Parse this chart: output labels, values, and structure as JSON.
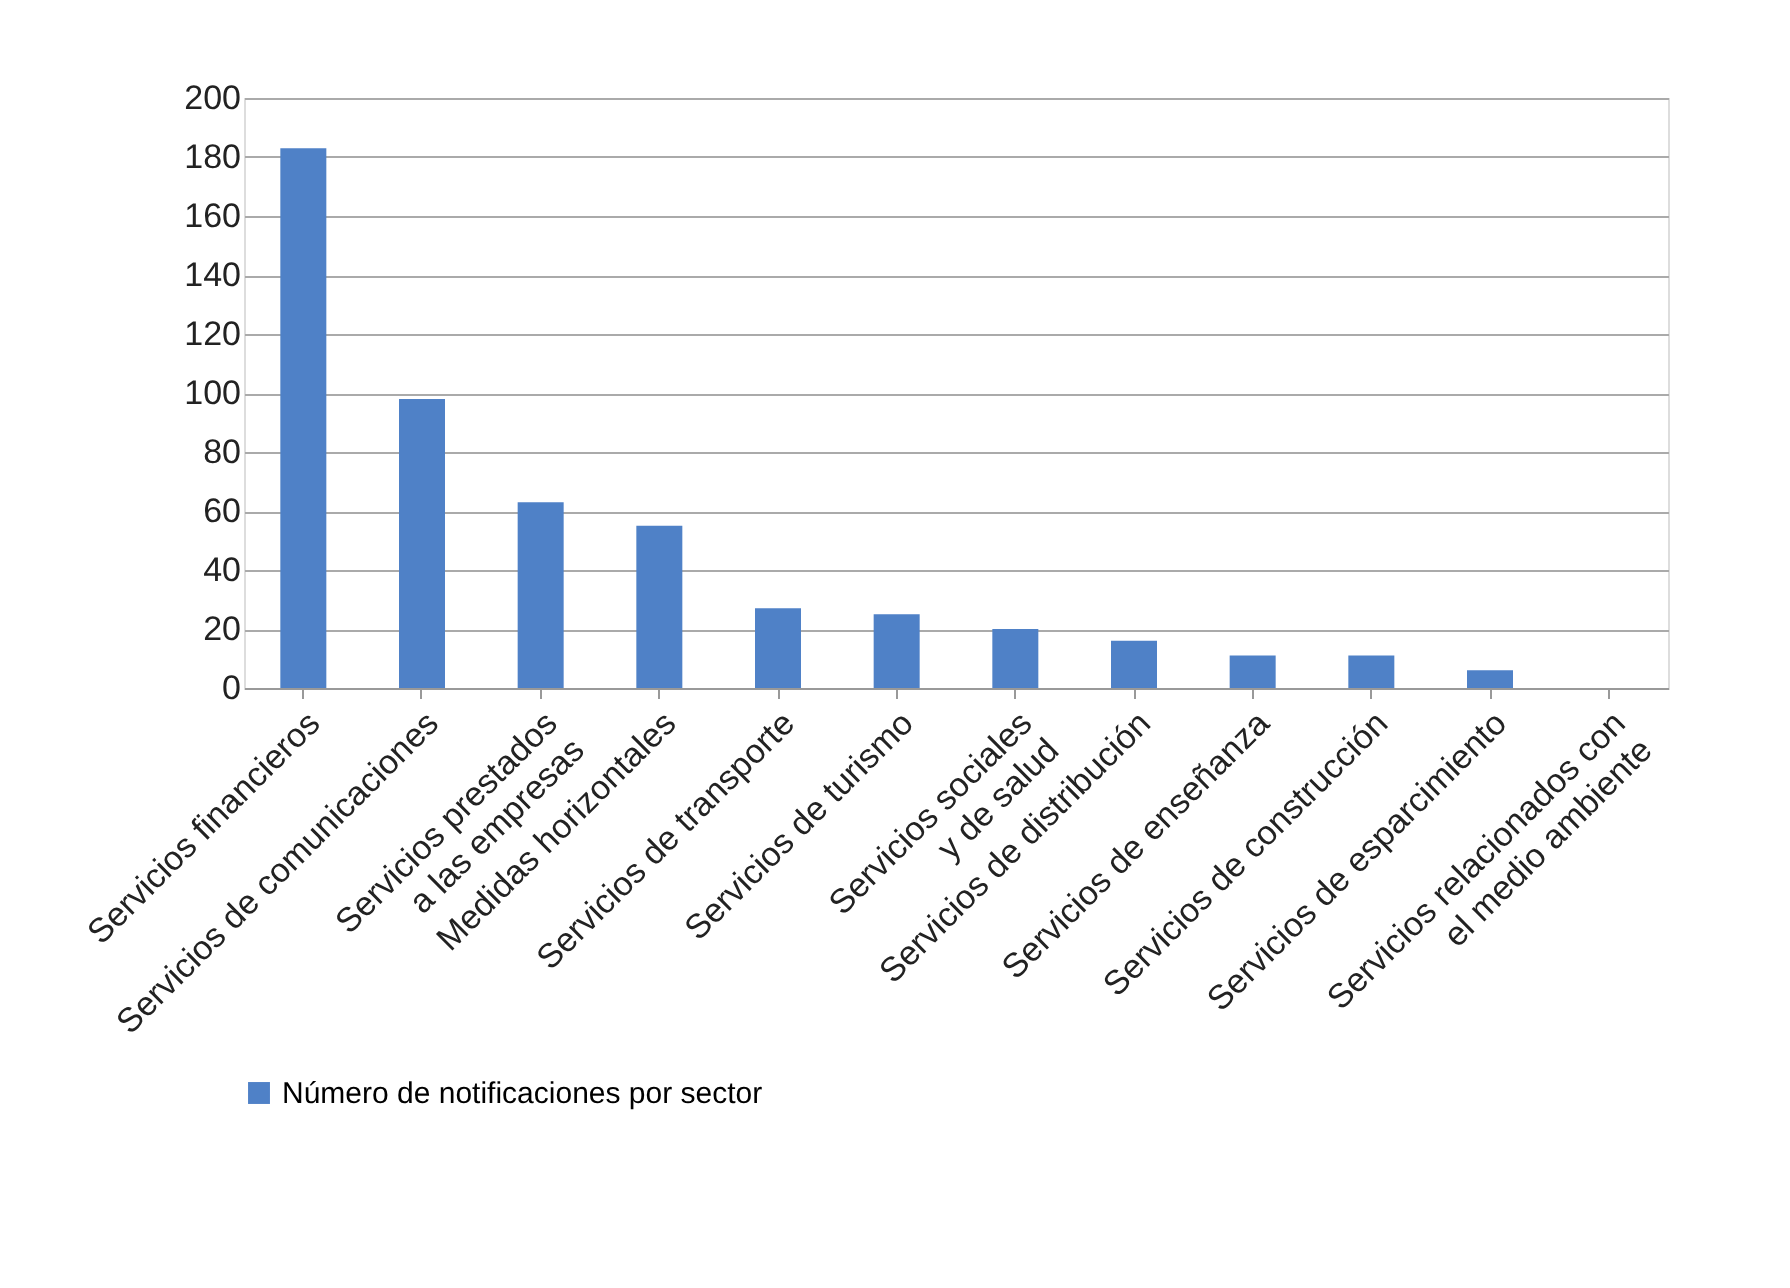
{
  "chart_data": {
    "type": "bar",
    "categories": [
      "Servicios financieros",
      "Servicios de comunicaciones",
      "Servicios prestados\na las empresas",
      "Medidas  horizontales",
      "Servicios de transporte",
      "Servicios de turismo",
      "Servicios sociales\ny de salud",
      "Servicios de distribución",
      "Servicios de enseñanza",
      "Servicios de construcción",
      "Servicios de esparcimiento",
      "Servicios relacionados con\nel medio ambiente"
    ],
    "series": [
      {
        "name": "Número de notificaciones por sector",
        "color": "#4f81c7",
        "values": [
          183,
          98,
          63,
          55,
          27,
          25,
          20,
          16,
          11,
          11,
          6,
          0
        ]
      }
    ],
    "ylim": [
      0,
      200
    ],
    "yticks": [
      0,
      20,
      40,
      60,
      80,
      100,
      120,
      140,
      160,
      180,
      200
    ],
    "grid": "y",
    "legend": "bottom"
  }
}
